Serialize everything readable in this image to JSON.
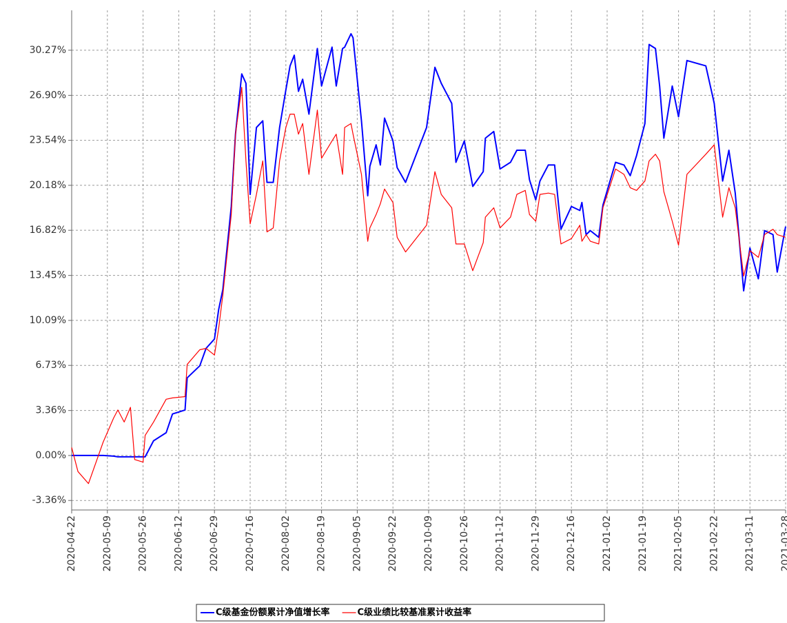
{
  "chart_data": {
    "type": "line",
    "x": [
      "2020-04-22",
      "2020-04-25",
      "2020-04-30",
      "2020-05-07",
      "2020-05-12",
      "2020-05-14",
      "2020-05-17",
      "2020-05-20",
      "2020-05-22",
      "2020-05-26",
      "2020-05-27",
      "2020-05-31",
      "2020-06-06",
      "2020-06-09",
      "2020-06-15",
      "2020-06-16",
      "2020-06-22",
      "2020-06-25",
      "2020-06-29",
      "2020-07-01",
      "2020-07-03",
      "2020-07-07",
      "2020-07-09",
      "2020-07-12",
      "2020-07-14",
      "2020-07-16",
      "2020-07-19",
      "2020-07-22",
      "2020-07-24",
      "2020-07-27",
      "2020-07-30",
      "2020-08-02",
      "2020-08-04",
      "2020-08-06",
      "2020-08-08",
      "2020-08-10",
      "2020-08-13",
      "2020-08-17",
      "2020-08-19",
      "2020-08-24",
      "2020-08-26",
      "2020-08-29",
      "2020-08-30",
      "2020-09-02",
      "2020-09-03",
      "2020-09-07",
      "2020-09-10",
      "2020-09-11",
      "2020-09-14",
      "2020-09-16",
      "2020-09-18",
      "2020-09-22",
      "2020-09-24",
      "2020-09-28",
      "2020-10-08",
      "2020-10-12",
      "2020-10-15",
      "2020-10-20",
      "2020-10-22",
      "2020-10-26",
      "2020-10-30",
      "2020-11-04",
      "2020-11-05",
      "2020-11-09",
      "2020-11-12",
      "2020-11-17",
      "2020-11-20",
      "2020-11-24",
      "2020-11-26",
      "2020-11-29",
      "2020-12-01",
      "2020-12-05",
      "2020-12-08",
      "2020-12-11",
      "2020-12-16",
      "2020-12-20",
      "2020-12-21",
      "2020-12-23",
      "2020-12-25",
      "2020-12-29",
      "2020-12-31",
      "2021-01-06",
      "2021-01-10",
      "2021-01-13",
      "2021-01-16",
      "2021-01-20",
      "2021-01-22",
      "2021-01-25",
      "2021-01-27",
      "2021-01-29",
      "2021-02-02",
      "2021-02-05",
      "2021-02-09",
      "2021-02-18",
      "2021-02-22",
      "2021-02-26",
      "2021-03-01",
      "2021-03-04",
      "2021-03-08",
      "2021-03-11",
      "2021-03-15",
      "2021-03-18",
      "2021-03-22",
      "2021-03-24",
      "2021-03-28"
    ],
    "series": [
      {
        "name": "C级基金份额累计净值增长率",
        "color": "#0000ff",
        "values": [
          0,
          0,
          0,
          0,
          -0.05,
          -0.1,
          -0.1,
          -0.1,
          -0.1,
          -0.1,
          -0.1,
          1.1,
          1.7,
          3.1,
          3.4,
          5.8,
          6.7,
          8.0,
          8.7,
          10.9,
          12.4,
          18.6,
          24.0,
          28.5,
          27.8,
          19.5,
          24.5,
          25.0,
          20.4,
          20.4,
          24.5,
          27.3,
          29.1,
          29.9,
          27.2,
          28.1,
          25.5,
          30.4,
          27.6,
          30.5,
          27.6,
          30.4,
          30.5,
          31.5,
          31.2,
          25.0,
          19.4,
          21.6,
          23.2,
          21.7,
          25.2,
          23.5,
          21.5,
          20.4,
          24.5,
          29.0,
          27.8,
          26.3,
          21.9,
          23.5,
          20.1,
          21.2,
          23.7,
          24.2,
          21.4,
          21.9,
          22.8,
          22.8,
          20.6,
          19.1,
          20.5,
          21.7,
          21.7,
          16.9,
          18.6,
          18.3,
          18.9,
          16.5,
          16.8,
          16.3,
          18.7,
          21.9,
          21.7,
          20.9,
          22.4,
          24.8,
          30.7,
          30.4,
          27.6,
          23.7,
          27.6,
          25.3,
          29.5,
          29.1,
          26.3,
          20.5,
          22.8,
          19.6,
          12.3,
          15.5,
          13.2,
          16.8,
          16.5,
          13.7,
          17.1
        ]
      },
      {
        "name": "C级业绩比较基准累计收益率",
        "color": "#ff0000",
        "values": [
          0.6,
          -1.2,
          -2.1,
          1.0,
          2.8,
          3.4,
          2.5,
          3.6,
          -0.3,
          -0.5,
          1.5,
          2.5,
          4.2,
          4.3,
          4.4,
          6.8,
          7.9,
          8.0,
          7.5,
          9.5,
          12.0,
          18.0,
          24.0,
          27.5,
          22.0,
          17.3,
          19.5,
          22.0,
          16.7,
          17.0,
          22.0,
          24.5,
          25.5,
          25.5,
          24.0,
          24.8,
          21.0,
          25.8,
          22.2,
          23.5,
          24.0,
          21.0,
          24.5,
          24.8,
          24.0,
          21.0,
          16.0,
          17.0,
          18.0,
          18.8,
          19.9,
          18.9,
          16.3,
          15.2,
          17.2,
          21.2,
          19.5,
          18.5,
          15.8,
          15.8,
          13.8,
          15.9,
          17.8,
          18.5,
          17.0,
          17.8,
          19.5,
          19.8,
          18.0,
          17.5,
          19.5,
          19.6,
          19.5,
          15.8,
          16.2,
          17.2,
          16.0,
          16.5,
          16.0,
          15.8,
          18.5,
          21.4,
          21.0,
          20.0,
          19.8,
          20.5,
          22.0,
          22.5,
          22.0,
          19.7,
          17.5,
          15.7,
          21.0,
          22.5,
          23.2,
          17.8,
          20.0,
          18.5,
          13.4,
          15.3,
          14.8,
          16.5,
          16.9,
          16.5,
          16.3
        ]
      }
    ],
    "xlim": [
      "2020-04-22",
      "2021-03-28"
    ],
    "xticks": [
      "2020-04-22",
      "2020-05-09",
      "2020-05-26",
      "2020-06-12",
      "2020-06-29",
      "2020-07-16",
      "2020-08-02",
      "2020-08-19",
      "2020-09-05",
      "2020-09-22",
      "2020-10-09",
      "2020-10-26",
      "2020-11-12",
      "2020-11-29",
      "2020-12-16",
      "2021-01-02",
      "2021-01-19",
      "2021-02-05",
      "2021-02-22",
      "2021-03-11",
      "2021-03-28"
    ],
    "ylim": [
      -4.07,
      33.25
    ],
    "yticks": [
      {
        "value": -3.36,
        "label": "-3.36%"
      },
      {
        "value": 0,
        "label": "0.00%"
      },
      {
        "value": 3.36,
        "label": "3.36%"
      },
      {
        "value": 6.73,
        "label": "6.73%"
      },
      {
        "value": 10.09,
        "label": "10.09%"
      },
      {
        "value": 13.45,
        "label": "13.45%"
      },
      {
        "value": 16.82,
        "label": "16.82%"
      },
      {
        "value": 20.18,
        "label": "20.18%"
      },
      {
        "value": 23.54,
        "label": "23.54%"
      },
      {
        "value": 26.9,
        "label": "26.90%"
      },
      {
        "value": 30.27,
        "label": "30.27%"
      }
    ],
    "grid": true
  }
}
